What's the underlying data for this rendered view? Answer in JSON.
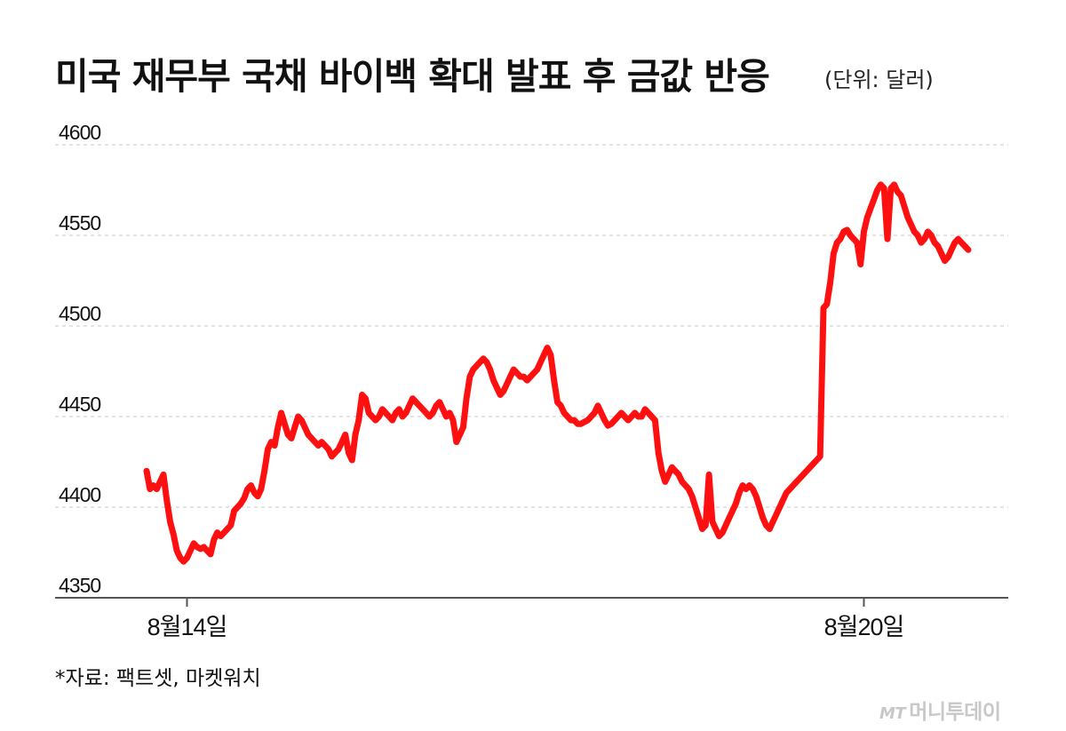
{
  "header": {
    "title": "미국 재무부 국채 바이백 확대 발표 후 금값 반응",
    "unit": "(단위: 달러)"
  },
  "footer": {
    "source": "*자료: 팩트셋, 마켓워치",
    "logo_mark": "MT",
    "logo_text": "머니투데이"
  },
  "colors": {
    "line": "#ff1010",
    "grid": "#c8c8c8",
    "axis": "#555555",
    "text": "#111111"
  },
  "chart_data": {
    "type": "line",
    "title": "미국 재무부 국채 바이백 확대 발표 후 금값 반응",
    "ylabel": "(단위: 달러)",
    "xlabel": "",
    "ylim": [
      4350,
      4600
    ],
    "yticks": [
      4600,
      4550,
      4500,
      4450,
      4400,
      4350
    ],
    "grid": true,
    "xticks": [
      {
        "label": "8월14일",
        "index": 12
      },
      {
        "label": "8월20일",
        "index": 213
      }
    ],
    "series": [
      {
        "values": [
          4420,
          4410,
          4412,
          4410,
          4414,
          4418,
          4404,
          4392,
          4385,
          4376,
          4372,
          4370,
          4372,
          4376,
          4380,
          4378,
          4377,
          4378,
          4376,
          4374,
          4382,
          4386,
          4384,
          4386,
          4388,
          4390,
          4398,
          4400,
          4402,
          4405,
          4410,
          4412,
          4408,
          4406,
          4410,
          4420,
          4432,
          4436,
          4434,
          4444,
          4452,
          4446,
          4440,
          4438,
          4444,
          4450,
          4448,
          4444,
          4440,
          4438,
          4436,
          4434,
          4436,
          4434,
          4432,
          4428,
          4430,
          4432,
          4436,
          4440,
          4430,
          4426,
          4440,
          4448,
          4462,
          4460,
          4452,
          4450,
          4448,
          4450,
          4454,
          4452,
          4450,
          4448,
          4452,
          4454,
          4450,
          4452,
          4456,
          4460,
          4458,
          4456,
          4454,
          4452,
          4450,
          4452,
          4456,
          4458,
          4454,
          4450,
          4452,
          4448,
          4436,
          4440,
          4444,
          4460,
          4472,
          4476,
          4478,
          4480,
          4482,
          4480,
          4476,
          4470,
          4466,
          4462,
          4464,
          4468,
          4472,
          4476,
          4474,
          4472,
          4472,
          4470,
          4472,
          4474,
          4476,
          4480,
          4484,
          4488,
          4484,
          4470,
          4458,
          4456,
          4452,
          4450,
          4448,
          4448,
          4446,
          4446,
          4447,
          4448,
          4450,
          4452,
          4456,
          4452,
          4448,
          4445,
          4446,
          4448,
          4450,
          4452,
          4450,
          4448,
          4450,
          4452,
          4450,
          4450,
          4454,
          4452,
          4450,
          4448,
          4430,
          4420,
          4414,
          4418,
          4422,
          4420,
          4418,
          4414,
          4412,
          4410,
          4406,
          4400,
          4394,
          4388,
          4390,
          4418,
          4392,
          4388,
          4384,
          4386,
          4390,
          4394,
          4398,
          4402,
          4408,
          4412,
          4410,
          4412,
          4410,
          4406,
          4400,
          4394,
          4390,
          4388,
          4392,
          4396,
          4400,
          4404,
          4408,
          4410,
          4412,
          4414,
          4416,
          4418,
          4420,
          4422,
          4424,
          4426,
          4428,
          4510,
          4512,
          4524,
          4540,
          4546,
          4548,
          4552,
          4553,
          4550,
          4548,
          4546,
          4534,
          4552,
          4560,
          4565,
          4570,
          4575,
          4578,
          4576,
          4548,
          4576,
          4578,
          4574,
          4572,
          4566,
          4560,
          4556,
          4552,
          4550,
          4546,
          4548,
          4552,
          4550,
          4546,
          4544,
          4540,
          4536,
          4538,
          4542,
          4546,
          4548,
          4546,
          4544,
          4542
        ]
      }
    ]
  }
}
